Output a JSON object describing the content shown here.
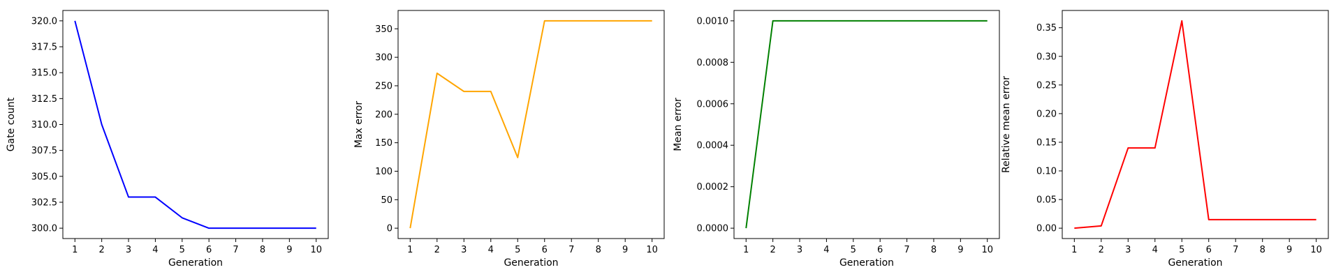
{
  "chart_data": [
    {
      "type": "line",
      "xlabel": "Generation",
      "ylabel": "Gate count",
      "color": "#0000ff",
      "x": [
        1,
        2,
        3,
        4,
        5,
        6,
        7,
        8,
        9,
        10
      ],
      "values": [
        320,
        310,
        303,
        303,
        301,
        300,
        300,
        300,
        300,
        300
      ],
      "xlim": [
        0.55,
        10.45
      ],
      "ylim": [
        299,
        321
      ],
      "xticks": [
        "1",
        "2",
        "3",
        "4",
        "5",
        "6",
        "7",
        "8",
        "9",
        "10"
      ],
      "yticks": [
        300.0,
        302.5,
        305.0,
        307.5,
        310.0,
        312.5,
        315.0,
        317.5,
        320.0
      ],
      "yticklabels": [
        "300.0",
        "302.5",
        "305.0",
        "307.5",
        "310.0",
        "312.5",
        "315.0",
        "317.5",
        "320.0"
      ],
      "grid": false
    },
    {
      "type": "line",
      "xlabel": "Generation",
      "ylabel": "Max error",
      "color": "#ffa500",
      "x": [
        1,
        2,
        3,
        4,
        5,
        6,
        7,
        8,
        9,
        10
      ],
      "values": [
        0,
        272,
        240,
        240,
        124,
        364,
        364,
        364,
        364,
        364
      ],
      "xlim": [
        0.55,
        10.45
      ],
      "ylim": [
        -18.2,
        382.2
      ],
      "xticks": [
        "1",
        "2",
        "3",
        "4",
        "5",
        "6",
        "7",
        "8",
        "9",
        "10"
      ],
      "yticks": [
        0,
        50,
        100,
        150,
        200,
        250,
        300,
        350
      ],
      "yticklabels": [
        "0",
        "50",
        "100",
        "150",
        "200",
        "250",
        "300",
        "350"
      ],
      "grid": false
    },
    {
      "type": "line",
      "xlabel": "Generation",
      "ylabel": "Mean error",
      "color": "#008000",
      "x": [
        1,
        2,
        3,
        4,
        5,
        6,
        7,
        8,
        9,
        10
      ],
      "values": [
        0,
        0.001,
        0.001,
        0.001,
        0.001,
        0.001,
        0.001,
        0.001,
        0.001,
        0.001
      ],
      "xlim": [
        0.55,
        10.45
      ],
      "ylim": [
        -5e-05,
        0.00105
      ],
      "xticks": [
        "1",
        "2",
        "3",
        "4",
        "5",
        "6",
        "7",
        "8",
        "9",
        "10"
      ],
      "yticks": [
        0,
        0.0002,
        0.0004,
        0.0006,
        0.0008,
        0.001
      ],
      "yticklabels": [
        "0.0000",
        "0.0002",
        "0.0004",
        "0.0006",
        "0.0008",
        "0.0010"
      ],
      "grid": false
    },
    {
      "type": "line",
      "xlabel": "Generation",
      "ylabel": "Relative mean error",
      "color": "#ff0000",
      "x": [
        1,
        2,
        3,
        4,
        5,
        6,
        7,
        8,
        9,
        10
      ],
      "values": [
        0,
        0.004,
        0.14,
        0.14,
        0.362,
        0.015,
        0.015,
        0.015,
        0.015,
        0.015
      ],
      "xlim": [
        0.55,
        10.45
      ],
      "ylim": [
        -0.0181,
        0.3801
      ],
      "xticks": [
        "1",
        "2",
        "3",
        "4",
        "5",
        "6",
        "7",
        "8",
        "9",
        "10"
      ],
      "yticks": [
        0,
        0.05,
        0.1,
        0.15,
        0.2,
        0.25,
        0.3,
        0.35
      ],
      "yticklabels": [
        "0.00",
        "0.05",
        "0.10",
        "0.15",
        "0.20",
        "0.25",
        "0.30",
        "0.35"
      ],
      "grid": false
    }
  ]
}
